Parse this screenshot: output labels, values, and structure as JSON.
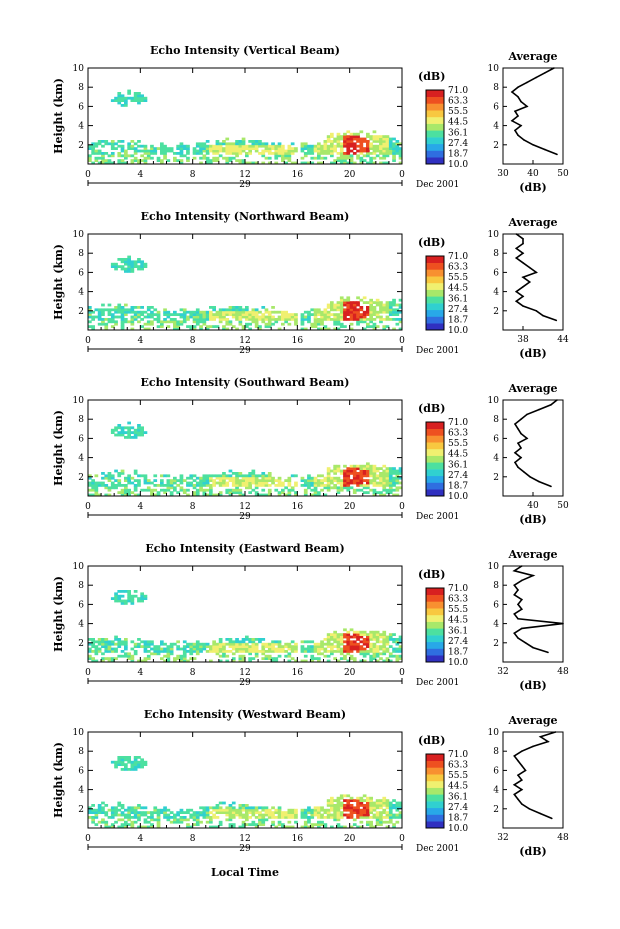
{
  "figure": {
    "xlabel": "Local Time",
    "date_label": "Dec 2001",
    "colorbar": {
      "unit": "(dB)",
      "ticks": [
        "71.0",
        "63.3",
        "55.5",
        "44.5",
        "36.1",
        "27.4",
        "18.7",
        "10.0"
      ],
      "colors": [
        "#3030c0",
        "#2f6ee0",
        "#28a8e8",
        "#30d0d0",
        "#4ce0a0",
        "#a8e86a",
        "#f0f070",
        "#f8c840",
        "#f89030",
        "#ee5020",
        "#d82020"
      ]
    },
    "day_label": "29",
    "time_ticks": [
      "0",
      "4",
      "8",
      "12",
      "16",
      "20",
      "0"
    ],
    "height_ticks": [
      "2",
      "4",
      "6",
      "8",
      "10"
    ],
    "avg_title": "Average",
    "avg_xlabel": "(dB)"
  },
  "chart_data": [
    {
      "type": "heatmap",
      "title": "Echo Intensity (Vertical Beam)",
      "xlabel": "",
      "ylabel": "Height (km)",
      "xlim": [
        0,
        24
      ],
      "ylim": [
        0,
        10
      ],
      "color_range": [
        10.0,
        71.0
      ],
      "profile": {
        "title": "Average",
        "xlabel": "(dB)",
        "xlim": [
          30,
          50
        ],
        "xticks": [
          "30",
          "40",
          "50"
        ],
        "heights": [
          1,
          1.5,
          2,
          2.5,
          3,
          3.5,
          4,
          4.5,
          5,
          5.5,
          6,
          6.5,
          7,
          7.5,
          8,
          8.5,
          9,
          9.5,
          10
        ],
        "values": [
          48,
          44,
          40,
          37,
          35,
          34,
          36,
          33,
          35,
          34,
          38,
          36,
          35,
          33,
          35,
          38,
          41,
          44,
          47
        ]
      }
    },
    {
      "type": "heatmap",
      "title": "Echo Intensity (Northward Beam)",
      "xlabel": "",
      "ylabel": "Height (km)",
      "xlim": [
        0,
        24
      ],
      "ylim": [
        0,
        10
      ],
      "color_range": [
        10.0,
        71.0
      ],
      "profile": {
        "title": "Average",
        "xlabel": "(dB)",
        "xlim": [
          35,
          44
        ],
        "xticks": [
          "38",
          "44"
        ],
        "heights": [
          1,
          1.5,
          2,
          2.5,
          3,
          3.5,
          4,
          4.5,
          5,
          5.5,
          6,
          6.5,
          7,
          7.5,
          8,
          8.5,
          9,
          9.5,
          10
        ],
        "values": [
          43,
          41,
          40,
          38,
          37,
          38,
          37,
          38,
          39,
          38,
          40,
          39,
          38,
          37,
          38,
          37,
          38,
          38,
          37
        ]
      }
    },
    {
      "type": "heatmap",
      "title": "Echo Intensity (Southward Beam)",
      "xlabel": "",
      "ylabel": "Height (km)",
      "xlim": [
        0,
        24
      ],
      "ylim": [
        0,
        10
      ],
      "color_range": [
        10.0,
        71.0
      ],
      "profile": {
        "title": "Average",
        "xlabel": "(dB)",
        "xlim": [
          30,
          50
        ],
        "xticks": [
          "40",
          "50"
        ],
        "heights": [
          1,
          1.5,
          2,
          2.5,
          3,
          3.5,
          4,
          4.5,
          5,
          5.5,
          6,
          6.5,
          7,
          7.5,
          8,
          8.5,
          9,
          9.5,
          10
        ],
        "values": [
          46,
          42,
          39,
          37,
          35,
          34,
          36,
          34,
          36,
          35,
          38,
          36,
          35,
          34,
          36,
          38,
          42,
          46,
          48
        ]
      }
    },
    {
      "type": "heatmap",
      "title": "Echo Intensity (Eastward Beam)",
      "xlabel": "",
      "ylabel": "Height (km)",
      "xlim": [
        0,
        24
      ],
      "ylim": [
        0,
        10
      ],
      "color_range": [
        10.0,
        71.0
      ],
      "profile": {
        "title": "Average",
        "xlabel": "(dB)",
        "xlim": [
          32,
          48
        ],
        "xticks": [
          "32",
          "48"
        ],
        "heights": [
          1,
          1.5,
          2,
          2.5,
          3,
          3.5,
          4,
          4.5,
          5,
          5.5,
          6,
          6.5,
          7,
          7.5,
          8,
          8.5,
          9,
          9.5,
          10
        ],
        "values": [
          44,
          40,
          38,
          36,
          35,
          37,
          48,
          36,
          35,
          37,
          36,
          37,
          35,
          36,
          35,
          37,
          40,
          35,
          37
        ]
      }
    },
    {
      "type": "heatmap",
      "title": "Echo Intensity (Westward Beam)",
      "xlabel": "",
      "ylabel": "Height (km)",
      "xlim": [
        0,
        24
      ],
      "ylim": [
        0,
        10
      ],
      "color_range": [
        10.0,
        71.0
      ],
      "profile": {
        "title": "Average",
        "xlabel": "(dB)",
        "xlim": [
          32,
          48
        ],
        "xticks": [
          "32",
          "48"
        ],
        "heights": [
          1,
          1.5,
          2,
          2.5,
          3,
          3.5,
          4,
          4.5,
          5,
          5.5,
          6,
          6.5,
          7,
          7.5,
          8,
          8.5,
          9,
          9.5,
          10
        ],
        "values": [
          45,
          42,
          39,
          37,
          36,
          35,
          37,
          35,
          37,
          36,
          38,
          37,
          36,
          35,
          37,
          40,
          44,
          42,
          46
        ]
      }
    }
  ]
}
